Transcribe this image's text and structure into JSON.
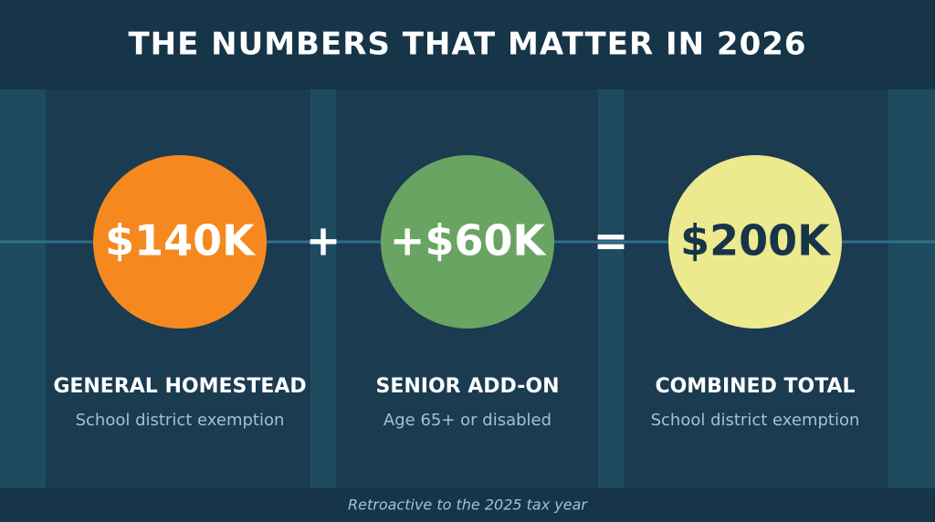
{
  "header": {
    "title": "THE NUMBERS THAT MATTER IN 2026"
  },
  "cards": [
    {
      "value": "$140K",
      "label": "GENERAL HOMESTEAD",
      "sublabel": "School district exemption"
    },
    {
      "value": "+$60K",
      "label": "SENIOR ADD-ON",
      "sublabel": "Age 65+ or disabled"
    },
    {
      "value": "$200K",
      "label": "COMBINED TOTAL",
      "sublabel": "School district exemption"
    }
  ],
  "operators": [
    "+",
    "="
  ],
  "footer": {
    "note": "Retroactive to the 2025 tax year"
  }
}
